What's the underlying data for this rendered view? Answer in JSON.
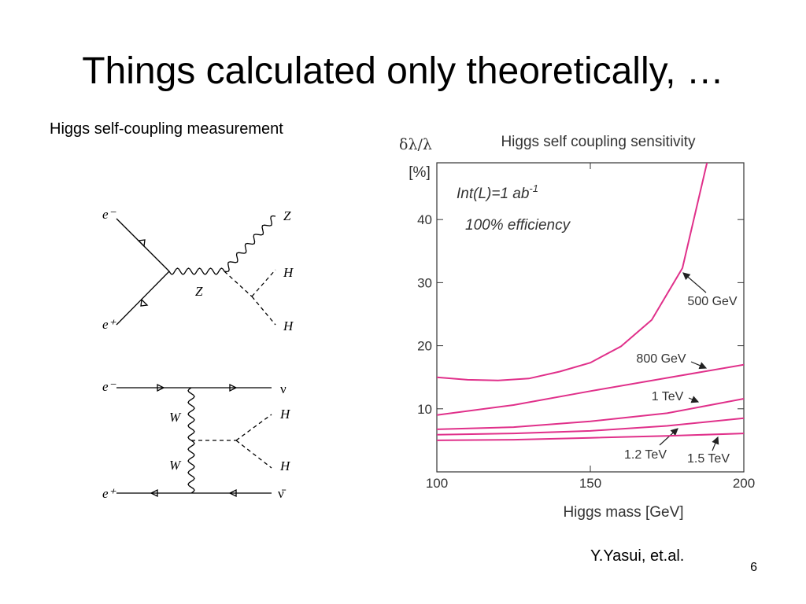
{
  "slide": {
    "title": "Things calculated only theoretically, …",
    "subtitle": "Higgs self-coupling measurement",
    "citation": "Y.Yasui, et.al.",
    "page_number": "6"
  },
  "diagrams": [
    {
      "labels": [
        "e⁻",
        "e⁺",
        "Z",
        "Z",
        "H",
        "H"
      ]
    },
    {
      "labels": [
        "e⁻",
        "ν",
        "W",
        "H",
        "W",
        "H",
        "e⁺",
        "ν̄"
      ]
    }
  ],
  "chart_data": {
    "type": "line",
    "title": "Higgs self coupling sensitivity",
    "y_label": "δλ/λ",
    "y_unit": "[%]",
    "x_label": "Higgs mass [GeV]",
    "annotations": [
      {
        "text": "Int(L)=1 ab",
        "sup": "-1"
      },
      {
        "text": "100% efficiency"
      }
    ],
    "xlim": [
      100,
      200
    ],
    "xticks": [
      100,
      150,
      200
    ],
    "ylim": [
      0,
      49
    ],
    "yticks": [
      10,
      20,
      30,
      40
    ],
    "grid": false,
    "series": [
      {
        "name": "500 GeV",
        "color": "#e0308a",
        "x": [
          100,
          110,
          120,
          130,
          140,
          150,
          160,
          170,
          180,
          188
        ],
        "values": [
          15,
          14.6,
          14.5,
          14.8,
          15.9,
          17.3,
          19.9,
          24.1,
          32.3,
          49
        ]
      },
      {
        "name": "800 GeV",
        "color": "#e0308a",
        "x": [
          100,
          125,
          150,
          175,
          200
        ],
        "values": [
          9,
          10.6,
          12.8,
          14.9,
          17
        ]
      },
      {
        "name": "1 TeV",
        "color": "#e0308a",
        "x": [
          100,
          125,
          150,
          175,
          200
        ],
        "values": [
          6.75,
          7.1,
          8,
          9.3,
          11.6
        ]
      },
      {
        "name": "1.2 TeV",
        "color": "#e0308a",
        "x": [
          100,
          125,
          150,
          175,
          200
        ],
        "values": [
          5.9,
          6.1,
          6.5,
          7.3,
          8.5
        ]
      },
      {
        "name": "1.5 TeV",
        "color": "#e0308a",
        "x": [
          100,
          125,
          150,
          175,
          200
        ],
        "values": [
          5,
          5.1,
          5.4,
          5.7,
          6.1
        ]
      }
    ]
  }
}
